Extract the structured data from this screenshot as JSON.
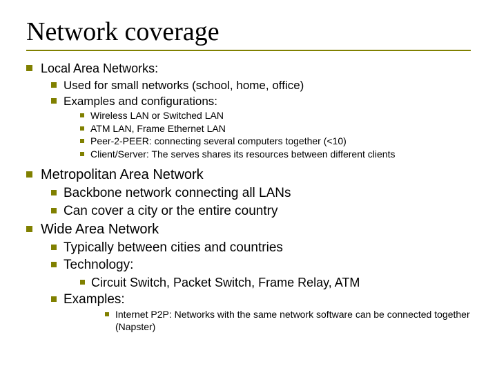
{
  "colors": {
    "bullet": "#808000",
    "rule": "#808000",
    "text": "#000000",
    "background": "#ffffff"
  },
  "title": "Network coverage",
  "lan": {
    "heading": "Local Area Networks:",
    "sub1": "Used for small networks (school, home, office)",
    "sub2": "Examples and configurations:",
    "ex1": "Wireless LAN or Switched LAN",
    "ex2": "ATM LAN, Frame Ethernet LAN",
    "ex3": "Peer-2-PEER: connecting several computers together (<10)",
    "ex4": "Client/Server:  The serves shares its resources between different clients"
  },
  "man": {
    "heading": "Metropolitan Area Network",
    "sub1": "Backbone network connecting all LANs",
    "sub2": "Can cover a city or the entire country"
  },
  "wan": {
    "heading": "Wide Area Network",
    "sub1": "Typically between cities and countries",
    "sub2": "Technology:",
    "tech1": "Circuit Switch, Packet Switch, Frame Relay, ATM",
    "sub3": "Examples:",
    "ex1": "Internet P2P: Networks with the same network software can be connected together (Napster)"
  }
}
